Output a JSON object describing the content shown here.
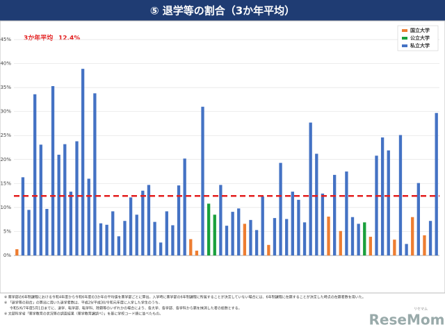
{
  "chart_data": {
    "type": "bar",
    "title": "⑤ 退学等の割合（3か年平均）",
    "average_line": {
      "text": "3か年平均",
      "value": 12.4,
      "value_label": "12.4%",
      "color": "#e31c1c"
    },
    "categories": [
      null,
      null,
      null,
      null,
      null,
      null,
      null,
      null,
      null,
      null,
      null,
      null,
      null,
      null,
      null,
      null,
      null,
      null,
      null,
      null,
      null,
      null,
      null,
      null,
      null,
      null,
      null,
      null,
      null,
      null,
      null,
      null,
      null,
      null,
      null,
      null,
      null,
      null,
      null,
      null,
      null,
      null,
      null,
      null,
      null,
      null,
      null,
      null,
      null,
      null,
      null,
      null,
      null,
      null,
      null,
      null,
      null,
      null,
      null,
      null,
      null,
      null,
      null,
      null,
      null,
      null,
      null,
      null,
      null,
      null,
      null
    ],
    "series": [
      {
        "name": "国立大学",
        "color": "#ed7d31",
        "values": [
          1.3,
          null,
          null,
          null,
          null,
          null,
          null,
          null,
          null,
          null,
          null,
          null,
          null,
          null,
          null,
          null,
          null,
          null,
          null,
          null,
          null,
          null,
          null,
          null,
          null,
          null,
          null,
          null,
          null,
          3.4,
          1.0,
          null,
          null,
          null,
          null,
          null,
          null,
          null,
          6.6,
          null,
          null,
          null,
          2.2,
          null,
          null,
          null,
          null,
          null,
          null,
          null,
          null,
          null,
          8.1,
          null,
          5.1,
          null,
          null,
          null,
          null,
          3.9,
          null,
          null,
          null,
          3.3,
          null,
          null,
          8.0,
          null,
          4.2,
          null,
          null
        ]
      },
      {
        "name": "公立大学",
        "color": "#1aa03c",
        "values": [
          null,
          null,
          null,
          null,
          null,
          null,
          null,
          null,
          null,
          null,
          null,
          null,
          null,
          null,
          null,
          null,
          null,
          null,
          null,
          null,
          null,
          null,
          null,
          null,
          null,
          null,
          null,
          null,
          null,
          null,
          null,
          null,
          10.8,
          8.5,
          null,
          null,
          null,
          null,
          null,
          null,
          null,
          null,
          null,
          null,
          null,
          null,
          null,
          null,
          null,
          null,
          null,
          null,
          null,
          null,
          null,
          null,
          null,
          null,
          6.9,
          null,
          null,
          null,
          null,
          null,
          null,
          null,
          null,
          null,
          null,
          null,
          null
        ]
      },
      {
        "name": "私立大学",
        "color": "#4472c4",
        "values": [
          null,
          16.3,
          9.5,
          33.6,
          23.1,
          9.7,
          35.3,
          21.0,
          23.2,
          13.3,
          23.8,
          38.9,
          16.0,
          33.8,
          6.7,
          6.4,
          9.2,
          4.0,
          7.2,
          12.1,
          8.5,
          13.5,
          14.7,
          7.0,
          2.7,
          9.2,
          6.3,
          14.6,
          20.2,
          null,
          null,
          31.0,
          null,
          null,
          14.7,
          6.2,
          9.1,
          9.8,
          null,
          7.4,
          5.3,
          12.3,
          null,
          7.8,
          19.3,
          7.6,
          13.3,
          11.6,
          6.9,
          27.7,
          21.2,
          12.9,
          null,
          16.8,
          null,
          17.5,
          8.0,
          6.6,
          null,
          null,
          20.8,
          24.6,
          21.9,
          null,
          25.1,
          2.4,
          null,
          15.1,
          null,
          7.2,
          29.7
        ]
      }
    ],
    "ylim": [
      0,
      45
    ],
    "yticks": [
      {
        "value": 0,
        "label": "0%"
      },
      {
        "value": 5,
        "label": "5%"
      },
      {
        "value": 10,
        "label": "10%"
      },
      {
        "value": 15,
        "label": "15%"
      },
      {
        "value": 20,
        "label": "20%"
      },
      {
        "value": 25,
        "label": "25%"
      },
      {
        "value": 30,
        "label": "30%"
      },
      {
        "value": 35,
        "label": "35%"
      },
      {
        "value": 40,
        "label": "40%"
      },
      {
        "value": 45,
        "label": "45%"
      }
    ],
    "grid": true,
    "legend": "top-right"
  },
  "notes": [
    "※ 薬学部の6年制課程における令和4年度から令和6年度の3か年の平均値を薬学部ごとに算出。入学時に薬学部の6年制課程に所属することが決定していない場合には、6年制課程に在籍することが決定した時点の在籍者数を用いた。",
    "※ 「退学等の割合」の算出に用いた退学者数は、平成29/平成30/令和元年度に入学した学生のうち、",
    "令和5/6/7年度5月1日までに、退学、転学部、転学科、除籍等のいずれかの場合により、各大学、各学部、各学科から籍を抹消した者の総数とする。",
    "※ 文部科学省「薬学教育の状況等の調査結果（薬学教育課調べ）」を基に学校コード順に並べたもの。"
  ],
  "logo": {
    "text": "ReseMom",
    "kana": "リセマム"
  }
}
